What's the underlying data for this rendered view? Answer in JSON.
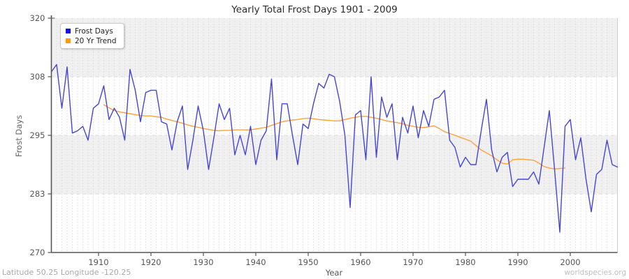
{
  "footer": {
    "left": "Latitude 50.25 Longitude -120.25",
    "right": "worldspecies.org"
  },
  "chart_data": {
    "type": "line",
    "title": "Yearly Total Frost Days 1901 - 2009",
    "xlabel": "Year",
    "ylabel": "Frost Days",
    "x_range": [
      1901,
      2009
    ],
    "ylim": [
      270,
      320
    ],
    "y_ticks": [
      320,
      308,
      295,
      283,
      270
    ],
    "x_ticks": [
      1910,
      1920,
      1930,
      1940,
      1950,
      1960,
      1970,
      1980,
      1990,
      2000
    ],
    "grid": "vertical dashed line every year; horizontal dashed lines at 308/295/283; alternating gray bands 308-320 and 283-295",
    "legend_position": "top-left",
    "colors": {
      "band": "#f0f0f0",
      "grid": "#d6d6d6",
      "axis": "#555555",
      "tick_text": "#555555"
    },
    "series": [
      {
        "name": "Frost Days",
        "color": "#4545d6",
        "swatch": "#0f0fe8",
        "start_year": 1901,
        "values": [
          309,
          310.5,
          301,
          310,
          295.5,
          296,
          297,
          294,
          301,
          302,
          306,
          298.5,
          301,
          299,
          294,
          309.5,
          305,
          298,
          304.5,
          305,
          305,
          298,
          297.5,
          292,
          298,
          301.5,
          288,
          294,
          301.5,
          296,
          288,
          294.5,
          302,
          298.5,
          301,
          291,
          295,
          291,
          297,
          289,
          294,
          296,
          307.5,
          290,
          302,
          302,
          295,
          289,
          297.5,
          296.5,
          302,
          306.5,
          305.5,
          308.5,
          308,
          302.5,
          295,
          280,
          299.5,
          300.5,
          290,
          308,
          290.5,
          303.5,
          299,
          302,
          290,
          299,
          295.5,
          301.5,
          294.5,
          300.5,
          297,
          303,
          303.5,
          305,
          294,
          292.5,
          288.5,
          290.5,
          289,
          289,
          296,
          303,
          292,
          287.5,
          290.5,
          291.5,
          284.5,
          286,
          286,
          286,
          287.5,
          285,
          292.5,
          300.5,
          288,
          274.5,
          297,
          298.5,
          290,
          294.5,
          286,
          279,
          287,
          288,
          294,
          289,
          288.5
        ]
      },
      {
        "name": "20 Yr Trend",
        "color": "#ffa13b",
        "swatch": "#ff9912",
        "start_year": 1911,
        "values": [
          301.8,
          301.1,
          300.5,
          300.2,
          300.0,
          299.8,
          299.6,
          299.4,
          299.3,
          299.3,
          299.1,
          299.0,
          298.6,
          298.3,
          298.0,
          297.7,
          297.3,
          297.0,
          296.8,
          296.5,
          296.3,
          296.1,
          296.0,
          296.1,
          296.1,
          296.2,
          296.2,
          296.2,
          296.2,
          296.4,
          296.6,
          296.8,
          297.2,
          297.6,
          298.0,
          298.2,
          298.4,
          298.5,
          298.7,
          298.8,
          298.7,
          298.5,
          298.4,
          298.3,
          298.2,
          298.2,
          298.5,
          298.8,
          299.0,
          299.2,
          299.2,
          299.0,
          298.8,
          298.5,
          298.2,
          298.0,
          297.8,
          297.6,
          297.2,
          297.0,
          296.8,
          296.7,
          296.9,
          297.1,
          296.5,
          295.8,
          295.4,
          295.0,
          294.6,
          294.2,
          293.8,
          292.9,
          292.0,
          291.4,
          290.8,
          290.0,
          289.3,
          289.1,
          290.0,
          290.1,
          290.1,
          290.0,
          289.9,
          289.3,
          288.6,
          288.3,
          288.1,
          288.2,
          288.3
        ]
      }
    ]
  }
}
